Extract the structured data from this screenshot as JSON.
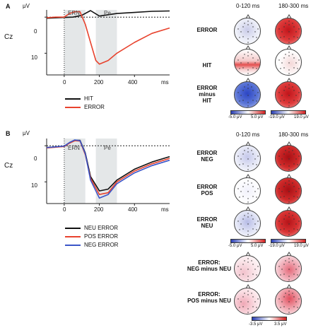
{
  "panel_a": {
    "label": "A",
    "y_unit": "μV",
    "y_ticks": [
      "0",
      "10"
    ],
    "x_ticks": [
      "0",
      "200",
      "400"
    ],
    "x_unit": "ms",
    "electrode": "Cz",
    "windows": [
      "ERN",
      "Pe"
    ],
    "legend": [
      "HIT",
      "ERROR"
    ],
    "colors": {
      "HIT": "#111111",
      "ERROR": "#e8432e"
    },
    "topo_columns": [
      "0-120 ms",
      "180-300 ms"
    ],
    "topo_rows": [
      "ERROR",
      "HIT",
      "ERROR\nminus\nHIT"
    ],
    "colorbar_left": [
      "-5.0 μV",
      "5.0 μV"
    ],
    "colorbar_right": [
      "-19.0 μV",
      "19.0 μV"
    ]
  },
  "panel_b": {
    "label": "B",
    "y_unit": "μV",
    "y_ticks": [
      "0",
      "10"
    ],
    "x_ticks": [
      "0",
      "200",
      "400"
    ],
    "x_unit": "ms",
    "electrode": "Cz",
    "windows": [
      "ERN",
      "Pe"
    ],
    "legend": [
      "NEU ERROR",
      "POS ERROR",
      "NEG ERROR"
    ],
    "colors": {
      "NEU ERROR": "#111111",
      "POS ERROR": "#e8432e",
      "NEG ERROR": "#3b55c8"
    },
    "topo_columns": [
      "0-120 ms",
      "180-300 ms"
    ],
    "topo_rows": [
      "ERROR\nNEG",
      "ERROR\nPOS",
      "ERROR\nNEU"
    ],
    "colorbar_left": [
      "-5.0 μV",
      "5.0 μV"
    ],
    "colorbar_right": [
      "-19.0 μV",
      "19.0 μV"
    ],
    "diff_rows": [
      "ERROR:\nNEG minus NEU",
      "ERROR:\nPOS minus NEU"
    ],
    "colorbar_diff": [
      "-3.5 μV",
      "3.5 μV"
    ]
  },
  "chart_data": [
    {
      "type": "line",
      "xlabel": "ms",
      "ylabel": "μV",
      "xlim": [
        -100,
        600
      ],
      "ylim": [
        -2,
        16
      ],
      "y_inverted": true,
      "shaded_windows": [
        {
          "name": "ERN",
          "x": [
            0,
            120
          ]
        },
        {
          "name": "Pe",
          "x": [
            180,
            300
          ]
        }
      ],
      "series": [
        {
          "name": "HIT",
          "x": [
            -100,
            -50,
            0,
            50,
            100,
            150,
            200,
            300,
            400,
            500,
            600
          ],
          "y": [
            0.3,
            0.2,
            0.1,
            0.0,
            -0.5,
            -1.8,
            -0.3,
            -1.0,
            -1.3,
            -1.6,
            -1.7
          ]
        },
        {
          "name": "ERROR",
          "x": [
            -100,
            -50,
            0,
            30,
            60,
            90,
            120,
            150,
            180,
            200,
            250,
            300,
            400,
            500,
            600
          ],
          "y": [
            0.2,
            0.0,
            0.0,
            -1.0,
            -1.5,
            -1.5,
            2.0,
            7.0,
            12.0,
            13.0,
            12.0,
            10.0,
            7.0,
            4.5,
            3.0
          ]
        }
      ]
    },
    {
      "type": "line",
      "xlabel": "ms",
      "ylabel": "μV",
      "xlim": [
        -100,
        600
      ],
      "ylim": [
        -2,
        16
      ],
      "y_inverted": true,
      "shaded_windows": [
        {
          "name": "ERN",
          "x": [
            0,
            120
          ]
        },
        {
          "name": "Pe",
          "x": [
            180,
            300
          ]
        }
      ],
      "series": [
        {
          "name": "NEU ERROR",
          "x": [
            -100,
            -50,
            0,
            30,
            60,
            90,
            120,
            150,
            200,
            250,
            300,
            400,
            500,
            600
          ],
          "y": [
            0.5,
            0.3,
            0.2,
            -0.8,
            -1.5,
            -1.5,
            2.0,
            8.5,
            12.5,
            12.0,
            9.5,
            6.5,
            4.5,
            3.0
          ]
        },
        {
          "name": "POS ERROR",
          "x": [
            -100,
            -50,
            0,
            30,
            60,
            90,
            120,
            150,
            200,
            250,
            300,
            400,
            500,
            600
          ],
          "y": [
            0.6,
            0.4,
            0.2,
            -0.7,
            -1.4,
            -1.3,
            2.5,
            9.0,
            13.5,
            13.0,
            10.0,
            7.0,
            5.0,
            3.5
          ]
        },
        {
          "name": "NEG ERROR",
          "x": [
            -100,
            -50,
            0,
            30,
            60,
            90,
            120,
            150,
            200,
            250,
            300,
            400,
            500,
            600
          ],
          "y": [
            0.5,
            0.3,
            0.1,
            -0.9,
            -1.6,
            -1.4,
            2.2,
            9.5,
            14.5,
            13.5,
            10.5,
            7.5,
            5.5,
            4.0
          ]
        }
      ]
    }
  ]
}
